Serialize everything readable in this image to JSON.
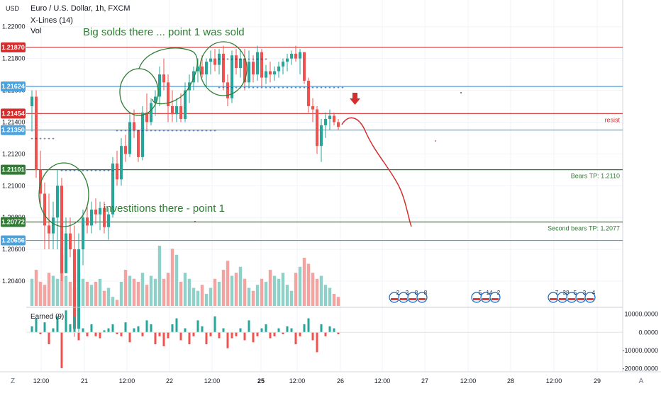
{
  "chart_data": {
    "type": "candlestick",
    "title": "Euro / U.S. Dollar, 1h, FXCM",
    "indicators": [
      "X-Lines (14)",
      "Vol"
    ],
    "price_axis": {
      "unit_label": "USD",
      "ticks": [
        "1.22000",
        "1.21800",
        "1.21600",
        "1.21400",
        "1.21200",
        "1.21000",
        "1.20800",
        "1.20600",
        "1.20400"
      ],
      "ylim": [
        1.2032,
        1.2207
      ]
    },
    "time_axis": {
      "ticks": [
        "12:00",
        "21",
        "12:00",
        "22",
        "12:00",
        "25",
        "12:00",
        "26",
        "12:00",
        "27",
        "12:00",
        "28",
        "12:00",
        "29"
      ],
      "bold_ticks": [
        "25"
      ]
    },
    "levels": [
      {
        "id": "l21870",
        "value": 1.2187,
        "label": "1.21870",
        "color": "#d32f2f",
        "right_note": ""
      },
      {
        "id": "l21624",
        "value": 1.21624,
        "label": "1.21624",
        "color": "#4aa3df",
        "right_note": ""
      },
      {
        "id": "l21454",
        "value": 1.21454,
        "label": "1.21454",
        "color": "#d32f2f",
        "right_note": "resist"
      },
      {
        "id": "l21350",
        "value": 1.2135,
        "label": "1.21350",
        "color": "#4aa3df",
        "right_note": ""
      },
      {
        "id": "l21101",
        "value": 1.21101,
        "label": "1.21101",
        "color": "#2e7d32",
        "right_note": "Bears TP: 1.2110"
      },
      {
        "id": "l20772",
        "value": 1.20772,
        "label": "1.20772",
        "color": "#2e7d32",
        "right_note": "Second bears TP: 1.2077"
      },
      {
        "id": "l20656",
        "value": 1.20656,
        "label": "1.20656",
        "color": "#4aa3df",
        "right_note": ""
      }
    ],
    "candles": [
      [
        1.215,
        1.216,
        1.2134,
        1.2156
      ],
      [
        1.2156,
        1.216,
        1.2105,
        1.211
      ],
      [
        1.211,
        1.2122,
        1.2088,
        1.2095
      ],
      [
        1.2095,
        1.2102,
        1.206,
        1.2075
      ],
      [
        1.2075,
        1.2095,
        1.206,
        1.207
      ],
      [
        1.207,
        1.209,
        1.206,
        1.208
      ],
      [
        1.208,
        1.211,
        1.206,
        1.21
      ],
      [
        1.21,
        1.2105,
        1.204,
        1.2045
      ],
      [
        1.2045,
        1.208,
        1.2045,
        1.207
      ],
      [
        1.207,
        1.208,
        1.2055,
        1.206
      ],
      [
        1.206,
        1.2075,
        1.2005,
        1.201
      ],
      [
        1.201,
        1.207,
        1.2005,
        1.206
      ],
      [
        1.206,
        1.2085,
        1.205,
        1.208
      ],
      [
        1.208,
        1.2088,
        1.207,
        1.2075
      ],
      [
        1.2075,
        1.209,
        1.207,
        1.2085
      ],
      [
        1.2085,
        1.2092,
        1.2076,
        1.2082
      ],
      [
        1.2082,
        1.209,
        1.2072,
        1.2086
      ],
      [
        1.2086,
        1.209,
        1.207,
        1.2074
      ],
      [
        1.2074,
        1.2086,
        1.2066,
        1.2082
      ],
      [
        1.2082,
        1.2118,
        1.208,
        1.2114
      ],
      [
        1.2114,
        1.2122,
        1.21,
        1.2104
      ],
      [
        1.2104,
        1.213,
        1.21,
        1.2125
      ],
      [
        1.2125,
        1.2132,
        1.2115,
        1.212
      ],
      [
        1.212,
        1.2145,
        1.2118,
        1.214
      ],
      [
        1.214,
        1.2148,
        1.213,
        1.2135
      ],
      [
        1.2135,
        1.2135,
        1.2115,
        1.2118
      ],
      [
        1.2118,
        1.215,
        1.2116,
        1.2146
      ],
      [
        1.2146,
        1.2158,
        1.2135,
        1.214
      ],
      [
        1.214,
        1.2155,
        1.2138,
        1.2152
      ],
      [
        1.2152,
        1.216,
        1.2144,
        1.2156
      ],
      [
        1.2156,
        1.2175,
        1.215,
        1.217
      ],
      [
        1.217,
        1.218,
        1.216,
        1.2165
      ],
      [
        1.2165,
        1.217,
        1.214,
        1.215
      ],
      [
        1.215,
        1.216,
        1.214,
        1.2145
      ],
      [
        1.2145,
        1.2155,
        1.214,
        1.215
      ],
      [
        1.215,
        1.2158,
        1.214,
        1.2142
      ],
      [
        1.2142,
        1.2165,
        1.214,
        1.216
      ],
      [
        1.216,
        1.217,
        1.2152,
        1.2165
      ],
      [
        1.2165,
        1.2175,
        1.216,
        1.2172
      ],
      [
        1.2172,
        1.218,
        1.2165,
        1.2175
      ],
      [
        1.2175,
        1.2182,
        1.2168,
        1.217
      ],
      [
        1.217,
        1.218,
        1.2162,
        1.2178
      ],
      [
        1.2178,
        1.2185,
        1.217,
        1.218
      ],
      [
        1.218,
        1.2186,
        1.2172,
        1.2176
      ],
      [
        1.2176,
        1.2186,
        1.217,
        1.2183
      ],
      [
        1.2183,
        1.2188,
        1.216,
        1.2165
      ],
      [
        1.2165,
        1.217,
        1.215,
        1.2155
      ],
      [
        1.2155,
        1.2185,
        1.2152,
        1.2182
      ],
      [
        1.2182,
        1.2186,
        1.217,
        1.2174
      ],
      [
        1.2174,
        1.2186,
        1.2168,
        1.218
      ],
      [
        1.218,
        1.2186,
        1.216,
        1.2165
      ],
      [
        1.2165,
        1.2185,
        1.2162,
        1.2178
      ],
      [
        1.2178,
        1.2182,
        1.2165,
        1.217
      ],
      [
        1.217,
        1.2188,
        1.2166,
        1.2184
      ],
      [
        1.2184,
        1.2186,
        1.2162,
        1.2168
      ],
      [
        1.2168,
        1.2176,
        1.2164,
        1.2172
      ],
      [
        1.2172,
        1.2178,
        1.2165,
        1.217
      ],
      [
        1.217,
        1.2175,
        1.2166,
        1.2172
      ],
      [
        1.2172,
        1.2178,
        1.2168,
        1.2175
      ],
      [
        1.2175,
        1.218,
        1.217,
        1.2178
      ],
      [
        1.2178,
        1.2183,
        1.2172,
        1.218
      ],
      [
        1.218,
        1.2185,
        1.2176,
        1.2183
      ],
      [
        1.2183,
        1.2188,
        1.2178,
        1.218
      ],
      [
        1.218,
        1.2186,
        1.217,
        1.2184
      ],
      [
        1.2184,
        1.2184,
        1.2164,
        1.2166
      ],
      [
        1.2166,
        1.2168,
        1.2146,
        1.215
      ],
      [
        1.215,
        1.2155,
        1.214,
        1.2148
      ],
      [
        1.2148,
        1.215,
        1.212,
        1.2125
      ],
      [
        1.2125,
        1.2142,
        1.2115,
        1.2138
      ],
      [
        1.2138,
        1.2146,
        1.213,
        1.2142
      ],
      [
        1.2142,
        1.2148,
        1.2135,
        1.2144
      ],
      [
        1.2144,
        1.2146,
        1.2138,
        1.214
      ],
      [
        1.214,
        1.2142,
        1.2135,
        1.2137
      ]
    ],
    "volumes": [
      45,
      60,
      40,
      35,
      55,
      50,
      45,
      85,
      50,
      40,
      30,
      55,
      45,
      40,
      35,
      40,
      45,
      25,
      30,
      15,
      10,
      40,
      60,
      50,
      45,
      40,
      55,
      35,
      50,
      45,
      100,
      45,
      55,
      95,
      85,
      40,
      55,
      45,
      30,
      25,
      35,
      20,
      30,
      45,
      40,
      60,
      75,
      50,
      55,
      65,
      45,
      30,
      25,
      35,
      45,
      40,
      60,
      50,
      45,
      55,
      35,
      25,
      55,
      65,
      80,
      70,
      55,
      45,
      50,
      35,
      30,
      20,
      15
    ],
    "earned": [
      15,
      35,
      -5,
      25,
      -30,
      10,
      40,
      -90,
      55,
      20,
      40,
      -20,
      10,
      -10,
      20,
      -10,
      -15,
      5,
      10,
      20,
      -5,
      -10,
      25,
      -25,
      10,
      15,
      -10,
      30,
      20,
      -30,
      -10,
      -35,
      -15,
      20,
      35,
      -20,
      10,
      -30,
      -10,
      30,
      15,
      -30,
      -10,
      40,
      -15,
      10,
      -40,
      -15,
      -10,
      10,
      -20,
      30,
      -25,
      -10,
      10,
      20,
      -15,
      -10,
      10,
      -5,
      15,
      10,
      -30,
      -10,
      20,
      35,
      -20,
      -50,
      20,
      -10,
      15,
      10,
      -5
    ],
    "volume_axis": {
      "ticks": [
        "1.20600",
        "1.20400"
      ]
    },
    "earned_axis": {
      "label": "Earned (9)",
      "ticks": [
        "10000.0000",
        "0.0000",
        "-10000.0000",
        "-20000.0000"
      ],
      "tick_values": [
        10000,
        0,
        -10000,
        -20000
      ],
      "ylim": [
        -21000,
        13000
      ]
    },
    "annotations": [
      {
        "id": "ann-big-solds",
        "text": "Big solds there ... point 1 was sold",
        "color": "#2e7d32"
      },
      {
        "id": "ann-investitions",
        "text": "investitions there - point 1",
        "color": "#2e7d32"
      }
    ],
    "event_badges": [
      {
        "group": "badges-27",
        "numbers": [
          "2",
          "3",
          "8",
          "8"
        ]
      },
      {
        "group": "badges-28",
        "numbers": [
          "5",
          "14",
          "2"
        ]
      },
      {
        "group": "badges-29",
        "numbers": [
          "7",
          "38",
          "5",
          "3",
          "4"
        ]
      }
    ],
    "colors": {
      "up": "#26a69a",
      "down": "#ef5350",
      "up_volume": "#8fd1c8",
      "down_volume": "#f5a3a1",
      "marker_blue": "#1e3a8a",
      "forecast_red": "#d32f2f",
      "circle_green": "#2e7d32"
    }
  },
  "toolbar": {
    "z_label": "Z",
    "a_label": "A"
  }
}
